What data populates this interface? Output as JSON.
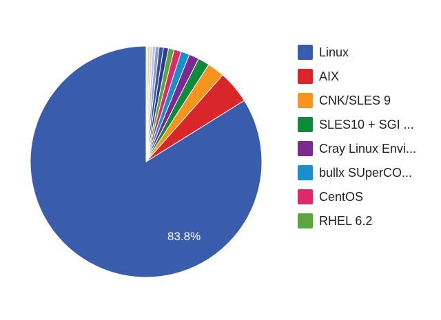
{
  "chart_data": {
    "type": "pie",
    "slices": [
      {
        "label": "Linux",
        "value": 83.8,
        "color": "#3a5cad"
      },
      {
        "label": "AIX",
        "value": 4.6,
        "color": "#d9262b"
      },
      {
        "label": "CNK/SLES 9",
        "value": 2.4,
        "color": "#f7941d"
      },
      {
        "label": "SLES10 + SGI ...",
        "value": 1.6,
        "color": "#0f8a3b"
      },
      {
        "label": "Cray Linux Envi...",
        "value": 1.4,
        "color": "#7b2a91"
      },
      {
        "label": "bullx SUperCO...",
        "value": 1.2,
        "color": "#1a8fd0"
      },
      {
        "label": "CentOS",
        "value": 1.0,
        "color": "#e0296b"
      },
      {
        "label": "RHEL 6.2",
        "value": 0.8,
        "color": "#5aa63c"
      },
      {
        "label": "",
        "value": 0.7,
        "color": "#2a3f8f"
      },
      {
        "label": "",
        "value": 0.6,
        "color": "#3a4fa0"
      },
      {
        "label": "",
        "value": 0.5,
        "color": "#8a9ccf"
      },
      {
        "label": "",
        "value": 0.4,
        "color": "#b7c3e3"
      },
      {
        "label": "",
        "value": 0.35,
        "color": "#cfd7ec"
      },
      {
        "label": "",
        "value": 0.3,
        "color": "#f2d18a"
      },
      {
        "label": "",
        "value": 0.25,
        "color": "#e5e5e5"
      }
    ],
    "data_labels": [
      "83.8%"
    ],
    "legend_position": "right"
  }
}
